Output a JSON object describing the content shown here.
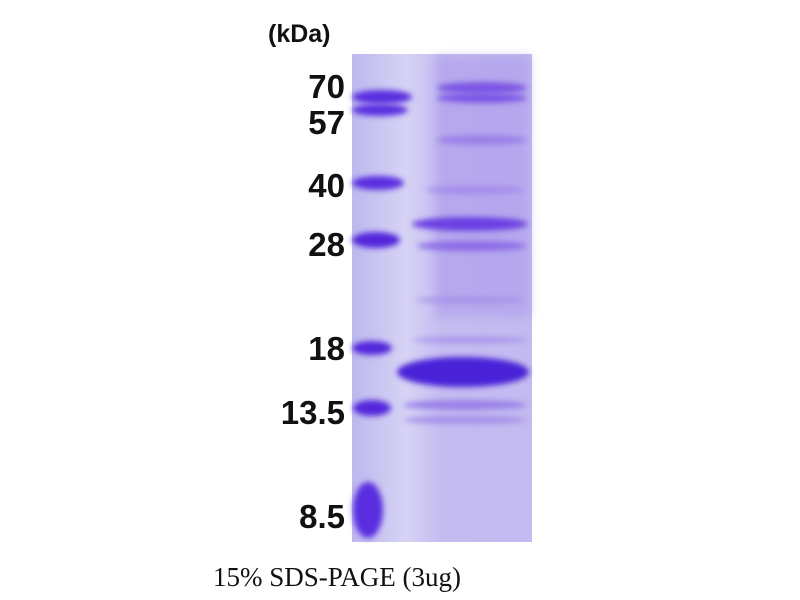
{
  "unit_label": "(kDa)",
  "markers": [
    "70",
    "57",
    "40",
    "28",
    "18",
    "13.5",
    "8.5"
  ],
  "caption": "15% SDS-PAGE  (3ug)",
  "colors": {
    "gel_background": "#c9c6f0",
    "band": "#5a2ee0",
    "text": "#111111"
  }
}
